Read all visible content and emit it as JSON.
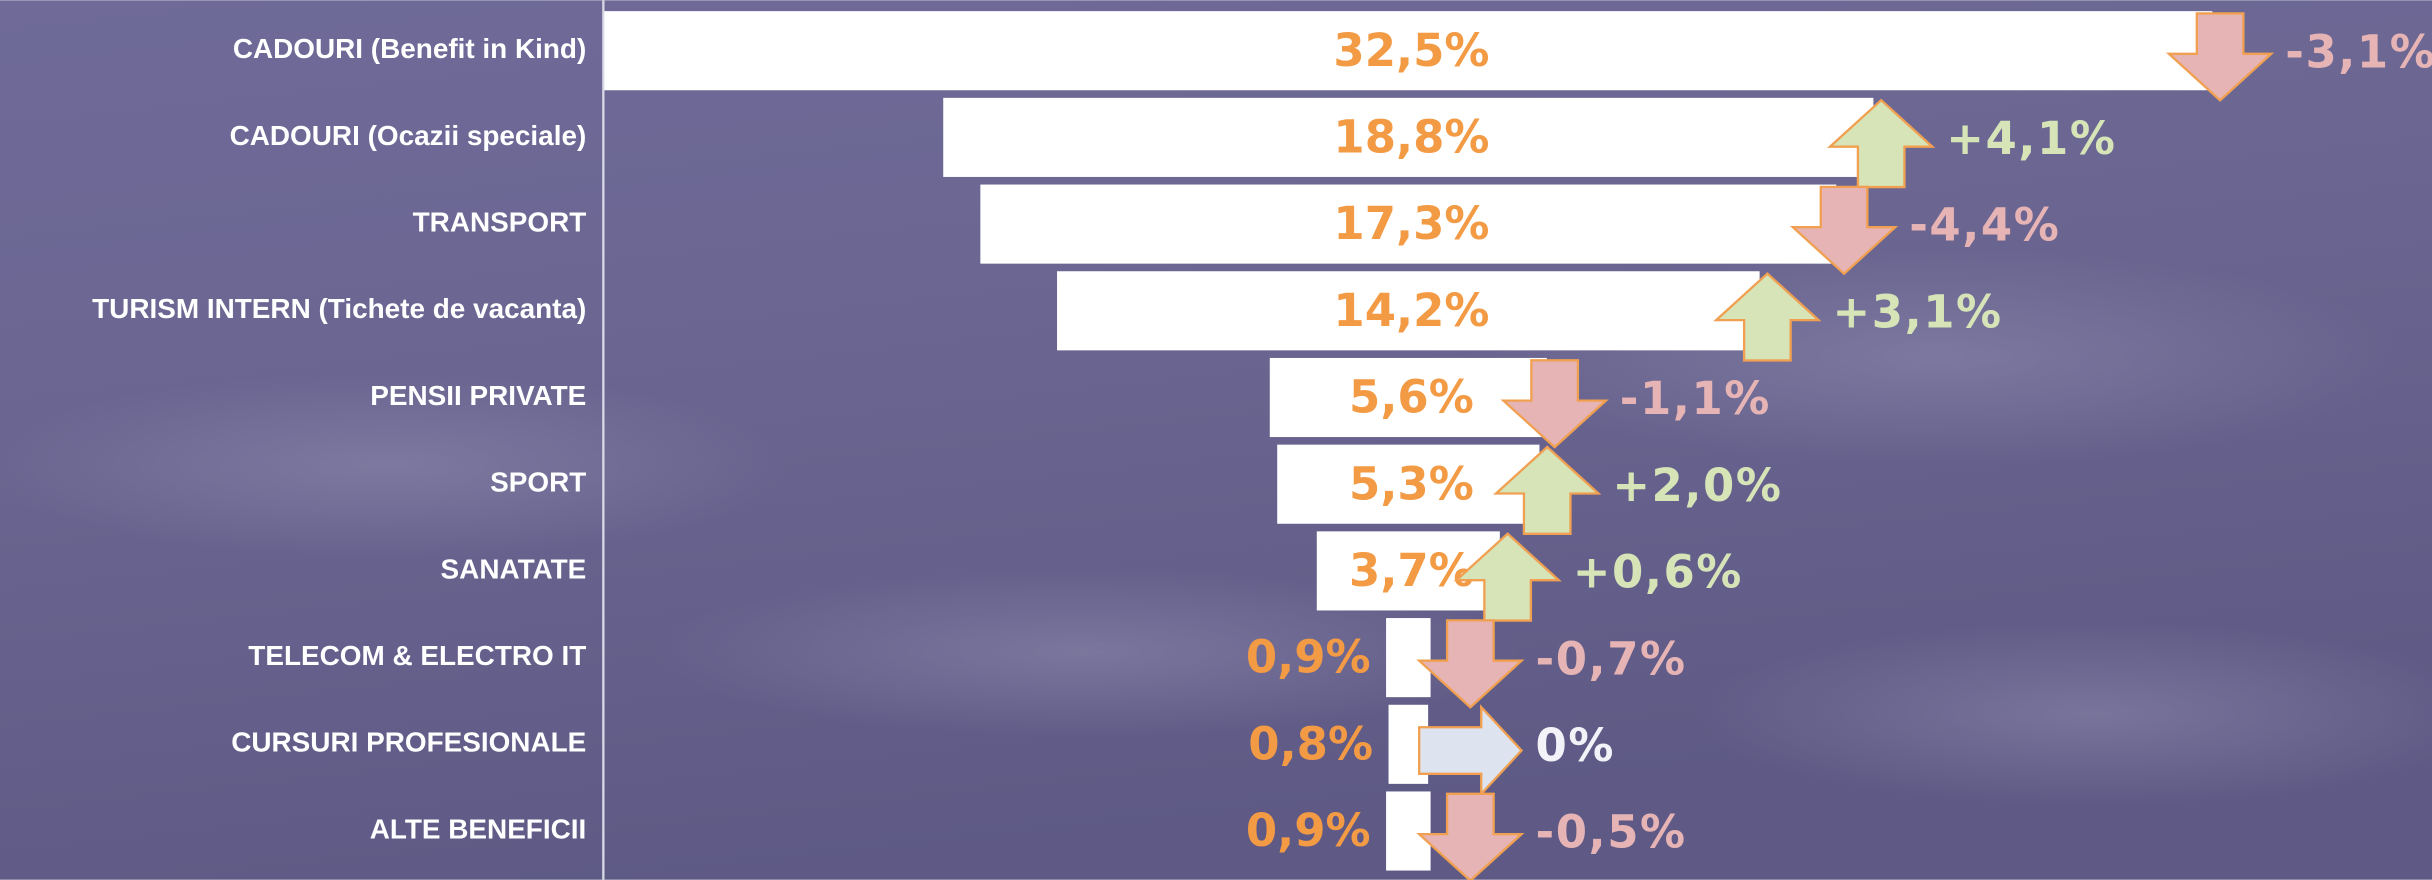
{
  "chart_data": {
    "type": "bar",
    "categories": [
      "CADOURI (Benefit in Kind)",
      "CADOURI (Ocazii speciale)",
      "TRANSPORT",
      "TURISM INTERN (Tichete de vacanta)",
      "PENSII PRIVATE",
      "SPORT",
      "SANATATE",
      "TELECOM & ELECTRO IT",
      "CURSURI PROFESIONALE",
      "ALTE BENEFICII"
    ],
    "values": [
      32.5,
      18.8,
      17.3,
      14.2,
      5.6,
      5.3,
      3.7,
      0.9,
      0.8,
      0.9
    ],
    "value_labels": [
      "32,5%",
      "18,8%",
      "17,3%",
      "14,2%",
      "5,6%",
      "5,3%",
      "3,7%",
      "0,9%",
      "0,8%",
      "0,9%"
    ],
    "color": "#ffffff",
    "label_color": "#f39a45",
    "changes": {
      "values": [
        -3.1,
        4.1,
        -4.4,
        3.1,
        -1.1,
        2.0,
        0.6,
        -0.7,
        0,
        -0.5
      ],
      "value_labels": [
        "-3,1%",
        "+4,1%",
        "-4,4%",
        "+3,1%",
        "-1,1%",
        "+2,0%",
        "+0,6%",
        "-0,7%",
        "0%",
        "-0,5%"
      ],
      "up_color": "#d6e4b8",
      "down_color": "#e6b4b4",
      "flat_color": "#dde4ef"
    }
  }
}
